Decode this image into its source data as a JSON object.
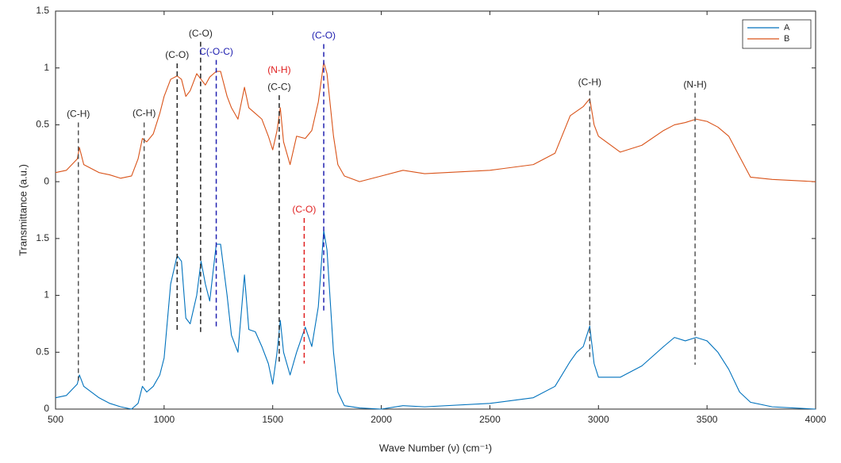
{
  "chart_data": {
    "type": "line",
    "xlabel": "Wave Number (ν) (cm⁻¹)",
    "ylabel": "Transmittance (a.u.)",
    "xlim": [
      500,
      4000
    ],
    "xticks": [
      500,
      1000,
      1500,
      2000,
      2500,
      3000,
      3500,
      4000
    ],
    "ylim": [
      0,
      3.5
    ],
    "yticks": [
      0,
      0.5,
      1,
      1.5,
      {
        "value": 2,
        "label": "0"
      },
      {
        "value": 2.5,
        "label": "0.5"
      },
      {
        "value": 3,
        "label": "1"
      },
      {
        "value": 3.5,
        "label": "1.5"
      }
    ],
    "legend": "northeast",
    "x": [
      500,
      550,
      600,
      610,
      630,
      700,
      750,
      800,
      850,
      880,
      900,
      920,
      950,
      980,
      1000,
      1030,
      1060,
      1080,
      1100,
      1120,
      1150,
      1170,
      1190,
      1210,
      1240,
      1260,
      1290,
      1310,
      1340,
      1370,
      1390,
      1420,
      1450,
      1480,
      1500,
      1520,
      1535,
      1550,
      1580,
      1610,
      1650,
      1680,
      1710,
      1735,
      1750,
      1780,
      1800,
      1830,
      1900,
      2000,
      2100,
      2200,
      2500,
      2700,
      2800,
      2870,
      2900,
      2930,
      2960,
      2980,
      3000,
      3100,
      3200,
      3300,
      3350,
      3400,
      3450,
      3500,
      3550,
      3600,
      3650,
      3700,
      3800,
      4000
    ],
    "series": [
      {
        "name": "A",
        "color": "#0072BD",
        "values": [
          0.1,
          0.12,
          0.22,
          0.3,
          0.2,
          0.1,
          0.05,
          0.02,
          0.0,
          0.05,
          0.2,
          0.15,
          0.2,
          0.3,
          0.45,
          1.1,
          1.35,
          1.3,
          0.8,
          0.75,
          1.0,
          1.3,
          1.1,
          0.95,
          1.45,
          1.45,
          1.0,
          0.65,
          0.5,
          1.18,
          0.7,
          0.68,
          0.55,
          0.4,
          0.22,
          0.5,
          0.78,
          0.5,
          0.3,
          0.5,
          0.72,
          0.55,
          0.9,
          1.57,
          1.4,
          0.5,
          0.15,
          0.03,
          0.01,
          0.0,
          0.03,
          0.02,
          0.05,
          0.1,
          0.2,
          0.42,
          0.5,
          0.55,
          0.73,
          0.4,
          0.28,
          0.28,
          0.38,
          0.55,
          0.63,
          0.6,
          0.63,
          0.6,
          0.5,
          0.35,
          0.15,
          0.06,
          0.02,
          0.0
        ]
      },
      {
        "name": "B",
        "color": "#D95319",
        "values": [
          2.08,
          2.1,
          2.2,
          2.3,
          2.15,
          2.08,
          2.06,
          2.03,
          2.05,
          2.2,
          2.38,
          2.35,
          2.42,
          2.6,
          2.75,
          2.9,
          2.93,
          2.9,
          2.75,
          2.8,
          2.95,
          2.9,
          2.85,
          2.92,
          2.97,
          2.97,
          2.75,
          2.65,
          2.55,
          2.83,
          2.65,
          2.6,
          2.55,
          2.4,
          2.28,
          2.45,
          2.65,
          2.35,
          2.15,
          2.4,
          2.38,
          2.45,
          2.7,
          3.05,
          2.95,
          2.4,
          2.15,
          2.05,
          2.0,
          2.05,
          2.1,
          2.07,
          2.1,
          2.15,
          2.25,
          2.58,
          2.62,
          2.66,
          2.73,
          2.5,
          2.4,
          2.26,
          2.32,
          2.45,
          2.5,
          2.52,
          2.55,
          2.53,
          2.48,
          2.4,
          2.22,
          2.04,
          2.02,
          2.0
        ]
      }
    ],
    "annotations": [
      {
        "text": "(C-H)",
        "color": "#262626",
        "x": 605,
        "y": 2.59
      },
      {
        "text": "(C-H)",
        "color": "#262626",
        "x": 908,
        "y": 2.6
      },
      {
        "text": "(C-O)",
        "color": "#262626",
        "x": 1060,
        "y": 3.11
      },
      {
        "text": "(C-O)",
        "color": "#262626",
        "x": 1168,
        "y": 3.3
      },
      {
        "text": "C(-O-C)",
        "color": "#2020b0",
        "x": 1240,
        "y": 3.14
      },
      {
        "text": "(N-H)",
        "color": "#e02020",
        "x": 1530,
        "y": 2.98
      },
      {
        "text": "(C-C)",
        "color": "#262626",
        "x": 1530,
        "y": 2.83
      },
      {
        "text": "(C-O)",
        "color": "#2020b0",
        "x": 1735,
        "y": 3.28
      },
      {
        "text": "(C-O)",
        "color": "#e02020",
        "x": 1645,
        "y": 1.75
      },
      {
        "text": "(C-H)",
        "color": "#262626",
        "x": 2960,
        "y": 2.87
      },
      {
        "text": "(N-H)",
        "color": "#262626",
        "x": 3445,
        "y": 2.85
      }
    ],
    "markers": [
      {
        "x": 605,
        "y_top": 2.52,
        "y_bottom": 0.25,
        "color": "#555555"
      },
      {
        "x": 908,
        "y_top": 2.52,
        "y_bottom": 0.25,
        "color": "#555555"
      },
      {
        "x": 1060,
        "y_top": 3.04,
        "y_bottom": 0.67,
        "color": "#262626"
      },
      {
        "x": 1168,
        "y_top": 3.23,
        "y_bottom": 0.67,
        "color": "#262626"
      },
      {
        "x": 1240,
        "y_top": 3.07,
        "y_bottom": 0.7,
        "color": "#2020b0"
      },
      {
        "x": 1530,
        "y_top": 2.76,
        "y_bottom": 0.4,
        "color": "#262626"
      },
      {
        "x": 1735,
        "y_top": 3.21,
        "y_bottom": 0.84,
        "color": "#2020b0"
      },
      {
        "x": 1645,
        "y_top": 1.68,
        "y_bottom": 0.4,
        "color": "#e02020"
      },
      {
        "x": 2960,
        "y_top": 2.8,
        "y_bottom": 0.45,
        "color": "#555555"
      },
      {
        "x": 3445,
        "y_top": 2.78,
        "y_bottom": 0.39,
        "color": "#555555"
      }
    ]
  }
}
